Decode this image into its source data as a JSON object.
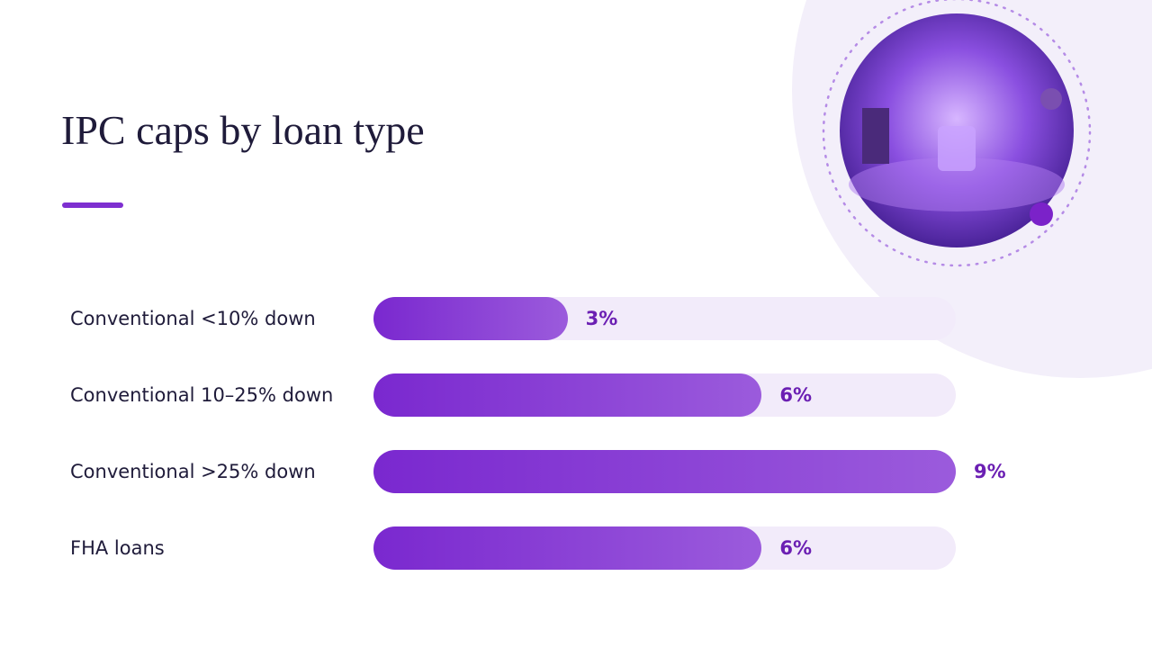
{
  "chart_data": {
    "type": "bar",
    "orientation": "horizontal",
    "title": "IPC caps by loan type",
    "categories": [
      "Conventional <10% down",
      "Conventional 10–25% down",
      "Conventional >25% down",
      "FHA loans"
    ],
    "values": [
      3,
      6,
      9,
      6
    ],
    "value_labels": [
      "3%",
      "6%",
      "9%",
      "6%"
    ],
    "color": "#7a28cf"
  }
}
